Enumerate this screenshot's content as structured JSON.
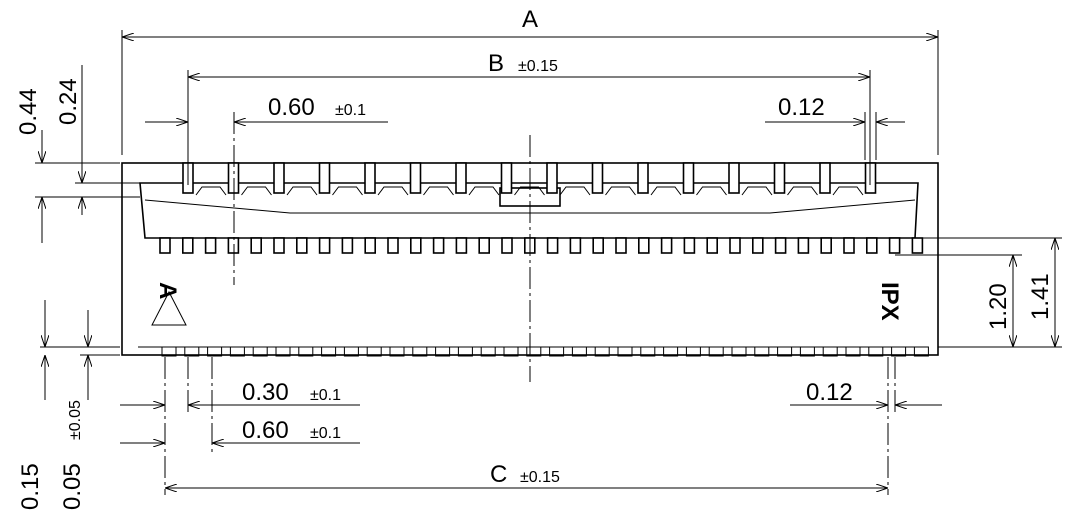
{
  "dimensions": {
    "a": {
      "label": "A"
    },
    "b": {
      "label": "B",
      "tolerance": "±0.15"
    },
    "pitch_top": {
      "label": "0.60",
      "tolerance": "±0.1"
    },
    "offset_top": {
      "label": "0.12"
    },
    "height_outer": {
      "label": "0.44"
    },
    "height_inner": {
      "label": "0.24"
    },
    "height_120": {
      "label": "1.20"
    },
    "height_141": {
      "label": "1.41"
    },
    "standoff": {
      "label": "0.15"
    },
    "standoff_min": {
      "label": "0.05",
      "tolerance": "±0.05"
    },
    "pin_width": {
      "label": "0.30",
      "tolerance": "±0.1"
    },
    "pitch_bottom": {
      "label": "0.60",
      "tolerance": "±0.1"
    },
    "offset_bottom": {
      "label": "0.12"
    },
    "c": {
      "label": "C",
      "tolerance": "±0.15"
    }
  },
  "markings": {
    "pin1": "A",
    "brand": "IPX"
  }
}
